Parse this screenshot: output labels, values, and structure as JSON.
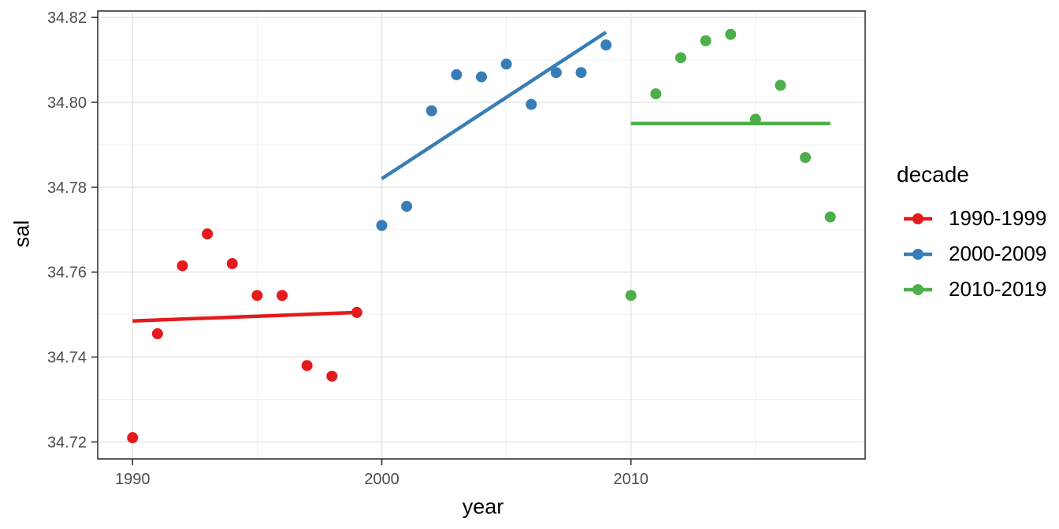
{
  "chart_data": {
    "type": "scatter",
    "title": "",
    "xlabel": "year",
    "ylabel": "sal",
    "legend_title": "decade",
    "legend_position": "right",
    "grid": "major and minor gridlines, light gray on white panel, full dark panel border (ggplot theme_bw)",
    "xlim": [
      1988.6,
      2019.4
    ],
    "ylim": [
      34.716,
      34.8215
    ],
    "x_ticks": [
      {
        "v": 1990,
        "label": "1990"
      },
      {
        "v": 2000,
        "label": "2000"
      },
      {
        "v": 2010,
        "label": "2010"
      }
    ],
    "x_minor": [
      1995,
      2005,
      2015
    ],
    "y_ticks": [
      {
        "v": 34.72,
        "label": "34.72"
      },
      {
        "v": 34.74,
        "label": "34.74"
      },
      {
        "v": 34.76,
        "label": "34.76"
      },
      {
        "v": 34.78,
        "label": "34.78"
      },
      {
        "v": 34.8,
        "label": "34.80"
      },
      {
        "v": 34.82,
        "label": "34.82"
      }
    ],
    "y_minor": [
      34.73,
      34.75,
      34.77,
      34.79,
      34.81
    ],
    "series": [
      {
        "name": "1990-1999",
        "color": "#E41A1C",
        "points": [
          [
            1990,
            34.721
          ],
          [
            1991,
            34.7455
          ],
          [
            1992,
            34.7615
          ],
          [
            1993,
            34.769
          ],
          [
            1994,
            34.762
          ],
          [
            1995,
            34.7545
          ],
          [
            1996,
            34.7545
          ],
          [
            1997,
            34.738
          ],
          [
            1998,
            34.7355
          ],
          [
            1999,
            34.7505
          ]
        ],
        "trend": [
          [
            1990,
            34.7485
          ],
          [
            1999,
            34.7505
          ]
        ]
      },
      {
        "name": "2000-2009",
        "color": "#377EB8",
        "points": [
          [
            2000,
            34.771
          ],
          [
            2001,
            34.7755
          ],
          [
            2002,
            34.798
          ],
          [
            2003,
            34.8065
          ],
          [
            2004,
            34.806
          ],
          [
            2005,
            34.809
          ],
          [
            2006,
            34.7995
          ],
          [
            2007,
            34.807
          ],
          [
            2008,
            34.807
          ],
          [
            2009,
            34.8135
          ]
        ],
        "trend": [
          [
            2000,
            34.782
          ],
          [
            2009,
            34.8165
          ]
        ]
      },
      {
        "name": "2010-2019",
        "color": "#4DAF4A",
        "points": [
          [
            2010,
            34.7545
          ],
          [
            2011,
            34.802
          ],
          [
            2012,
            34.8105
          ],
          [
            2013,
            34.8145
          ],
          [
            2014,
            34.816
          ],
          [
            2015,
            34.796
          ],
          [
            2016,
            34.804
          ],
          [
            2017,
            34.787
          ],
          [
            2018,
            34.773
          ]
        ],
        "trend": [
          [
            2010,
            34.795
          ],
          [
            2018,
            34.795
          ]
        ]
      }
    ],
    "style": {
      "background": "#FFFFFF",
      "grid_major": "#E6E6E6",
      "grid_minor": "#F0F0F0",
      "panel_border": "#333333",
      "tick_color": "#333333",
      "tick_label_color": "#4D4D4D",
      "title_color": "#000000",
      "point_radius": 7,
      "trend_width": 4.5
    }
  }
}
